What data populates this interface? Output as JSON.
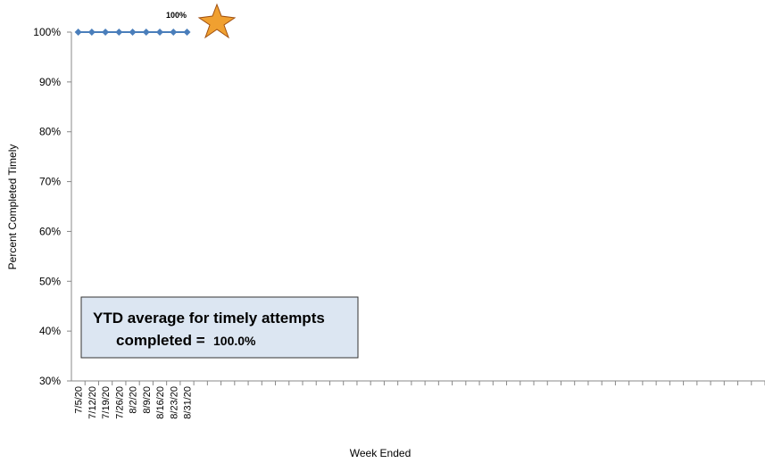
{
  "chart_data": {
    "type": "line",
    "y_axis_label": "Percent Completed Timely",
    "x_axis_label": "Week Ended",
    "categories": [
      "7/5/20",
      "7/12/20",
      "7/19/20",
      "7/26/20",
      "8/2/20",
      "8/9/20",
      "8/16/20",
      "8/23/20",
      "8/31/20",
      null,
      null,
      null,
      null,
      null,
      null,
      null,
      null,
      null,
      null,
      null,
      null,
      null,
      null,
      null,
      null,
      null,
      null,
      null,
      null,
      null,
      null,
      null,
      null,
      null,
      null,
      null,
      null,
      null,
      null,
      null,
      null,
      null,
      null,
      null,
      null,
      null,
      null,
      null,
      null,
      null,
      null
    ],
    "series": [
      {
        "name": "Percent Completed Timely",
        "color": "#4a7ebb",
        "values": [
          100,
          100,
          100,
          100,
          100,
          100,
          100,
          100,
          100,
          null,
          null,
          null,
          null,
          null,
          null,
          null,
          null,
          null,
          null,
          null,
          null,
          null,
          null,
          null,
          null,
          null,
          null,
          null,
          null,
          null,
          null,
          null,
          null,
          null,
          null,
          null,
          null,
          null,
          null,
          null,
          null,
          null,
          null,
          null,
          null,
          null,
          null,
          null,
          null,
          null,
          null
        ]
      }
    ],
    "ylim": [
      30,
      100
    ],
    "yticks": [
      {
        "value": 30,
        "label": "30%"
      },
      {
        "value": 40,
        "label": "40%"
      },
      {
        "value": 50,
        "label": "50%"
      },
      {
        "value": 60,
        "label": "60%"
      },
      {
        "value": 70,
        "label": "70%"
      },
      {
        "value": 80,
        "label": "80%"
      },
      {
        "value": 90,
        "label": "90%"
      },
      {
        "value": 100,
        "label": "100%"
      }
    ],
    "grid": false,
    "point_annotation": "100%",
    "summary_box": [
      "YTD average for timely attempts",
      "completed =",
      "100.0%"
    ]
  }
}
